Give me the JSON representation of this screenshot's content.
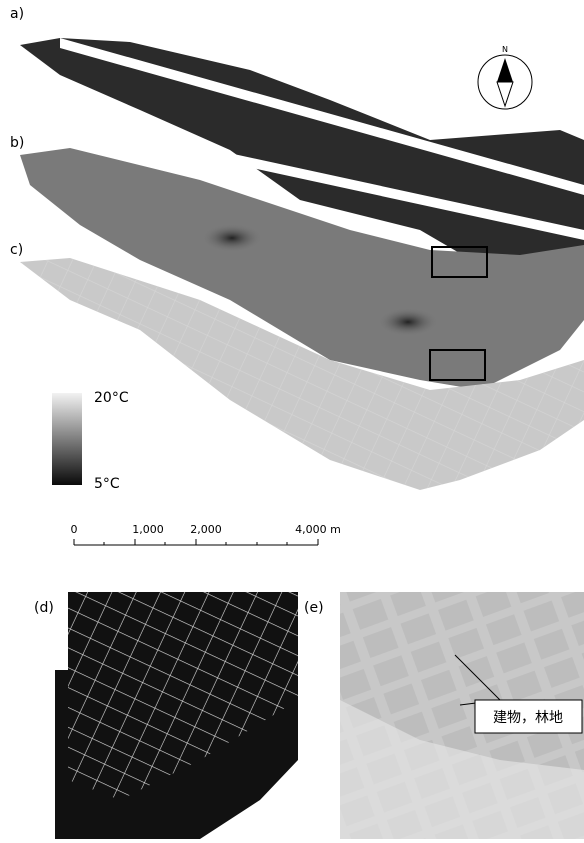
{
  "panels": {
    "a": "a)",
    "b": "b)",
    "c": "c)",
    "d": "(d)",
    "e": "(e)"
  },
  "compass": "N",
  "colorbar": {
    "max_label": "20°C",
    "min_label": "5°C"
  },
  "scale_bar": [
    "0",
    "1,000",
    "2,000",
    "4,000 m"
  ],
  "annotation": "建物，林地"
}
